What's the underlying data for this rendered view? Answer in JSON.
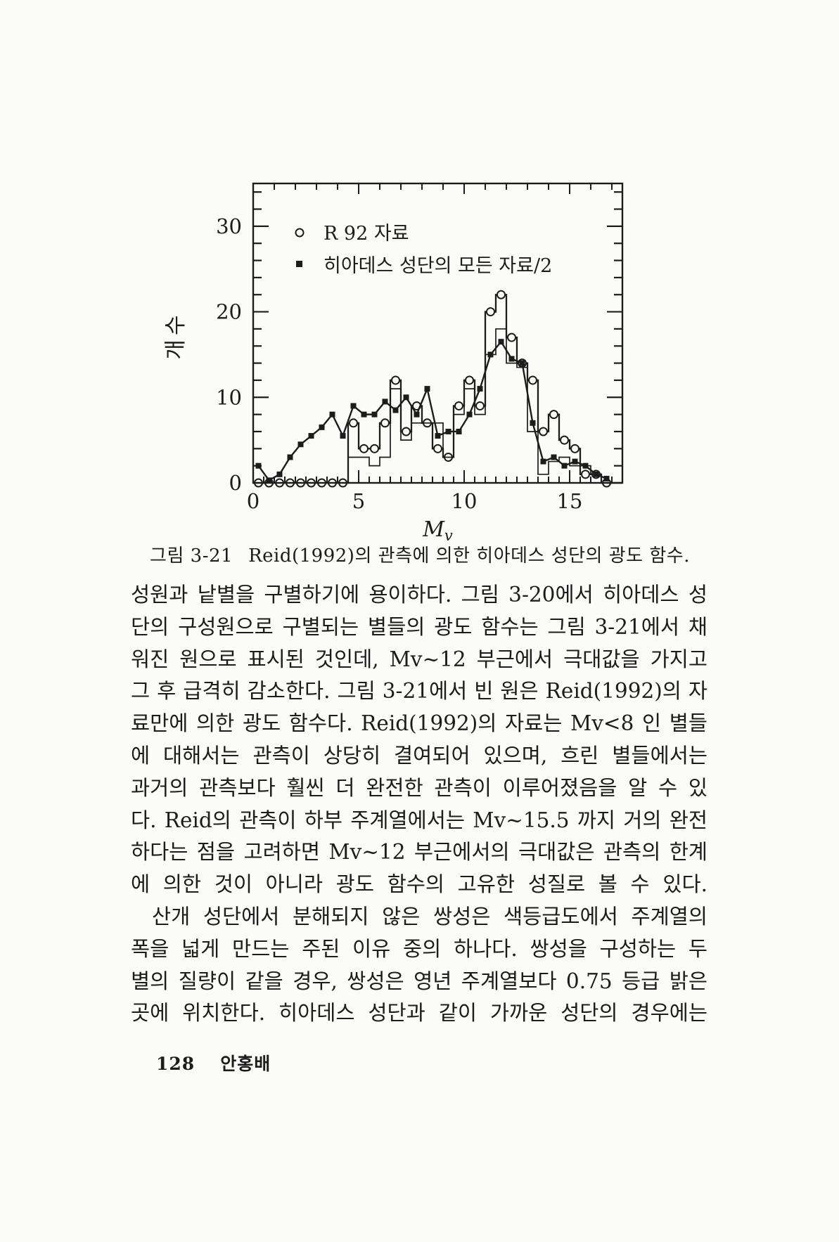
{
  "page": {
    "footer_page_number": "128",
    "footer_author": "안홍배"
  },
  "figure": {
    "caption_label": "그림 3-21",
    "caption_text": "Reid(1992)의 관측에 의한 히아데스 성단의 광도 함수."
  },
  "chart_data": {
    "type": "line",
    "description": "히아데스 성단의 광도 함수: R92 자료 히스토그램(빈 원)과 히아데스 성단의 모든 자료/2(채워진 네모 꺾은선)",
    "title": "",
    "xlabel": "Mv",
    "ylabel": "개수",
    "xlim": [
      0,
      17.5
    ],
    "ylim": [
      0,
      35
    ],
    "x_major_ticks": [
      0,
      5,
      10,
      15
    ],
    "x_minor_step": 0.5,
    "x_top_tick_step": 1,
    "y_major_ticks": [
      0,
      10,
      20,
      30
    ],
    "y_minor_step": 2,
    "grid": false,
    "legend_position": "top-left-inside",
    "legend": [
      {
        "marker": "open-circle",
        "label": "R 92 자료"
      },
      {
        "marker": "filled-square",
        "label": "히아데스 성단의 모든 자료/2"
      }
    ],
    "series": [
      {
        "name": "R 92 자료",
        "type": "histogram",
        "marker": "open-circle",
        "bin_start": 0,
        "bin_width": 0.5,
        "values": [
          0,
          0,
          0,
          0,
          0,
          0,
          0,
          0,
          0,
          7,
          4,
          4,
          7,
          12,
          6,
          9,
          7,
          4,
          3,
          9,
          12,
          9,
          20,
          22,
          17,
          14,
          12,
          6,
          8,
          5,
          4,
          1,
          1,
          0
        ]
      },
      {
        "name": "히아데스 성단의 모든 자료/2",
        "type": "line",
        "marker": "filled-square",
        "x_start": 0.25,
        "x_step": 0.5,
        "values": [
          2,
          0.3,
          1,
          3,
          4.5,
          5.5,
          6.5,
          8,
          5.5,
          9,
          8,
          8,
          9.5,
          8.5,
          10,
          8,
          11,
          5.5,
          6,
          6,
          8,
          11,
          15,
          16.5,
          14.5,
          14,
          7,
          2.5,
          3,
          2,
          2.5,
          2,
          1,
          0.5
        ]
      },
      {
        "name": "히아데스 성단의 모든 자료/2 (히스토그램 윤곽)",
        "type": "histogram",
        "marker": "none",
        "bin_start": 4.5,
        "bin_width": 0.5,
        "values": [
          3,
          3,
          2,
          3,
          11,
          5,
          7,
          7,
          7,
          3,
          8,
          11,
          8,
          15,
          18,
          14,
          13.5,
          6,
          1,
          2.5,
          3,
          2,
          2,
          1
        ]
      }
    ]
  },
  "body": {
    "lines": [
      "성원과 낱별을 구별하기에 용이하다. 그림 3-20에서 히아데스 성",
      "단의 구성원으로 구별되는 별들의 광도 함수는 그림 3-21에서 채",
      "워진 원으로 표시된 것인데, Mv~12 부근에서 극대값을 가지고",
      "그 후 급격히 감소한다. 그림 3-21에서 빈 원은 Reid(1992)의 자",
      "료만에 의한 광도 함수다. Reid(1992)의 자료는 Mv<8 인 별들",
      "에 대해서는 관측이 상당히 결여되어 있으며, 흐린 별들에서는",
      "과거의 관측보다 훨씬 더 완전한 관측이 이루어졌음을 알 수 있",
      "다. Reid의 관측이 하부 주계열에서는 Mv~15.5 까지 거의 완전",
      "하다는 점을 고려하면 Mv~12 부근에서의 극대값은 관측의 한계",
      "에 의한 것이 아니라 광도 함수의 고유한 성질로 볼 수 있다.",
      "산개 성단에서 분해되지 않은 쌍성은 색등급도에서 주계열의",
      "폭을 넓게 만드는 주된 이유 중의 하나다. 쌍성을 구성하는 두",
      "별의 질량이 같을 경우, 쌍성은 영년 주계열보다 0.75 등급 밝은",
      "곳에 위치한다. 히아데스 성단과 같이 가까운 성단의 경우에는"
    ]
  }
}
